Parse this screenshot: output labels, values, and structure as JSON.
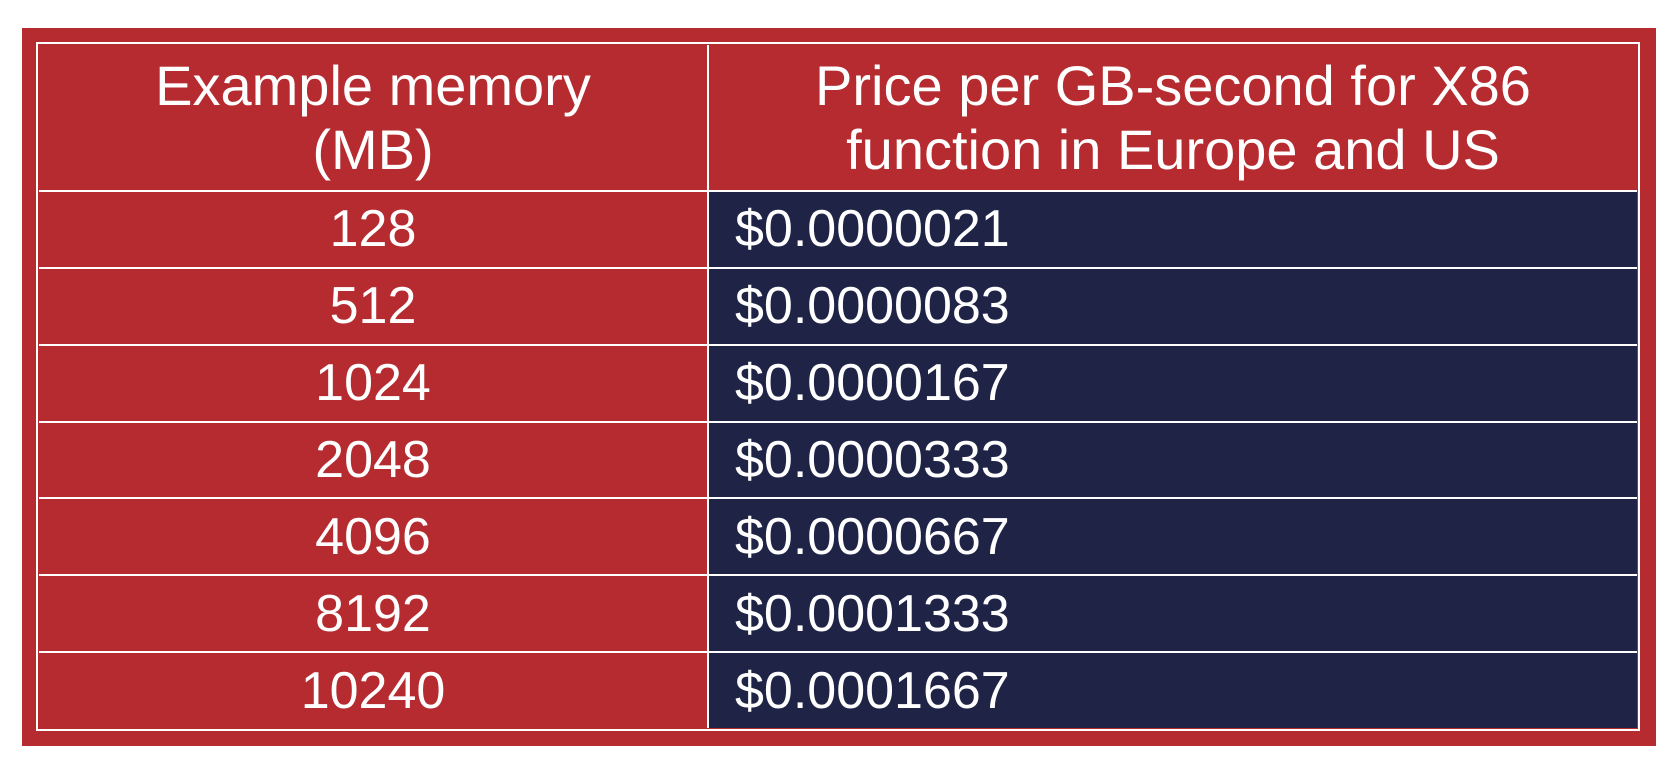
{
  "colors": {
    "frame_red": "#b52b2f",
    "price_cell_navy": "#1f2447",
    "text": "#ffffff",
    "rule": "#ffffff"
  },
  "chart_data": {
    "type": "table",
    "columns": [
      "Example memory\n(MB)",
      "Price per GB-second for X86\nfunction in Europe and US"
    ],
    "rows": [
      [
        "128",
        "$0.0000021"
      ],
      [
        "512",
        "$0.0000083"
      ],
      [
        "1024",
        "$0.0000167"
      ],
      [
        "2048",
        "$0.0000333"
      ],
      [
        "4096",
        "$0.0000667"
      ],
      [
        "8192",
        "$0.0001333"
      ],
      [
        "10240",
        "$0.0001667"
      ]
    ]
  }
}
